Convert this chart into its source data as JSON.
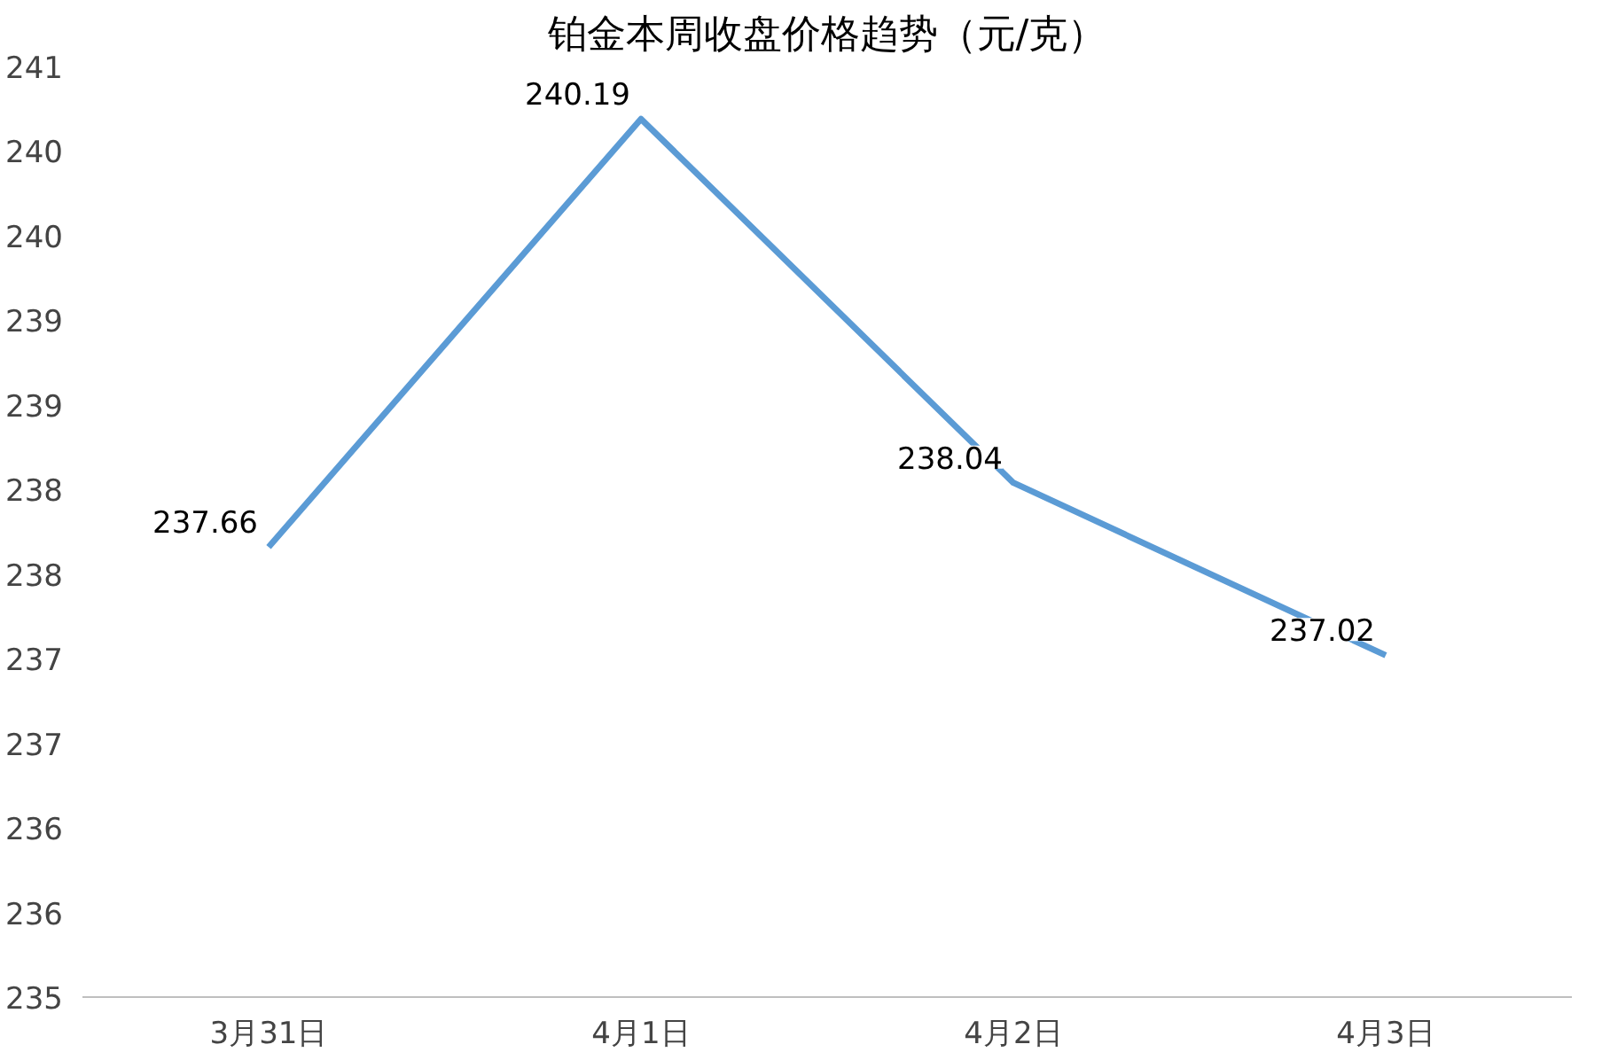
{
  "chart_data": {
    "type": "line",
    "title": "铂金本周收盘价格趋势（元/克）",
    "categories": [
      "3月31日",
      "4月1日",
      "4月2日",
      "4月3日"
    ],
    "series": [
      {
        "color": "#5b9bd5",
        "values": [
          237.66,
          240.19,
          238.04,
          237.02
        ]
      }
    ],
    "ylim": [
      235,
      240.5
    ],
    "yticks": [
      235,
      {
        "value": 235.5,
        "label": "236"
      },
      236,
      {
        "value": 236.5,
        "label": "237"
      },
      237,
      {
        "value": 237.5,
        "label": "238"
      },
      238,
      {
        "value": 238.5,
        "label": "239"
      },
      239,
      {
        "value": 239.5,
        "label": "240"
      },
      240,
      {
        "value": 240.5,
        "label": "241"
      }
    ],
    "data_labels": true,
    "grid": false,
    "marker": "none",
    "line_style": "solid"
  }
}
